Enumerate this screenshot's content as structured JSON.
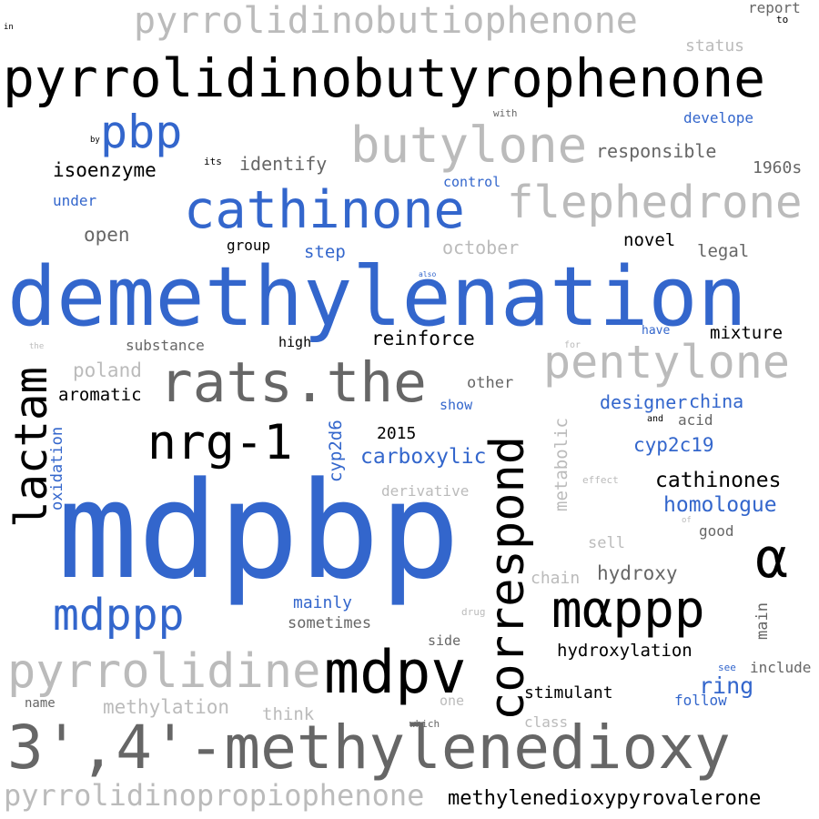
{
  "colors": {
    "blue": "#3366cc",
    "black": "#000000",
    "dark_gray": "#666666",
    "light_gray": "#bbbbbb"
  },
  "words": [
    {
      "text": "pyrrolidinobutiophenone",
      "color": "light_gray"
    },
    {
      "text": "report",
      "color": "dark_gray"
    },
    {
      "text": "to",
      "color": "black"
    },
    {
      "text": "in",
      "color": "black"
    },
    {
      "text": "status",
      "color": "light_gray"
    },
    {
      "text": "pyrrolidinobutyrophenone",
      "color": "black"
    },
    {
      "text": "with",
      "color": "dark_gray"
    },
    {
      "text": "pbp",
      "color": "blue"
    },
    {
      "text": "develope",
      "color": "blue"
    },
    {
      "text": "butylone",
      "color": "light_gray"
    },
    {
      "text": "by",
      "color": "black"
    },
    {
      "text": "responsible",
      "color": "dark_gray"
    },
    {
      "text": "its",
      "color": "black"
    },
    {
      "text": "identify",
      "color": "dark_gray"
    },
    {
      "text": "1960s",
      "color": "dark_gray"
    },
    {
      "text": "isoenzyme",
      "color": "black"
    },
    {
      "text": "control",
      "color": "blue"
    },
    {
      "text": "flephedrone",
      "color": "light_gray"
    },
    {
      "text": "under",
      "color": "blue"
    },
    {
      "text": "cathinone",
      "color": "blue"
    },
    {
      "text": "open",
      "color": "dark_gray"
    },
    {
      "text": "group",
      "color": "black"
    },
    {
      "text": "october",
      "color": "light_gray"
    },
    {
      "text": "novel",
      "color": "black"
    },
    {
      "text": "step",
      "color": "blue"
    },
    {
      "text": "legal",
      "color": "dark_gray"
    },
    {
      "text": "demethylenation",
      "color": "blue"
    },
    {
      "text": "also",
      "color": "blue"
    },
    {
      "text": "have",
      "color": "blue"
    },
    {
      "text": "mixture",
      "color": "black"
    },
    {
      "text": "the",
      "color": "light_gray"
    },
    {
      "text": "substance",
      "color": "dark_gray"
    },
    {
      "text": "high",
      "color": "black"
    },
    {
      "text": "reinforce",
      "color": "black"
    },
    {
      "text": "for",
      "color": "light_gray"
    },
    {
      "text": "pentylone",
      "color": "light_gray"
    },
    {
      "text": "poland",
      "color": "light_gray"
    },
    {
      "text": "rats.the",
      "color": "dark_gray"
    },
    {
      "text": "other",
      "color": "dark_gray"
    },
    {
      "text": "aromatic",
      "color": "black"
    },
    {
      "text": "lactam",
      "color": "black"
    },
    {
      "text": "show",
      "color": "blue"
    },
    {
      "text": "designer",
      "color": "blue"
    },
    {
      "text": "china",
      "color": "blue"
    },
    {
      "text": "oxidation",
      "color": "blue"
    },
    {
      "text": "nrg-1",
      "color": "black"
    },
    {
      "text": "correspond",
      "color": "black"
    },
    {
      "text": "metabolic",
      "color": "light_gray"
    },
    {
      "text": "and",
      "color": "black"
    },
    {
      "text": "acid",
      "color": "dark_gray"
    },
    {
      "text": "2015",
      "color": "black"
    },
    {
      "text": "cyp2c19",
      "color": "blue"
    },
    {
      "text": "carboxylic",
      "color": "blue"
    },
    {
      "text": "cyp2d6",
      "color": "blue"
    },
    {
      "text": "effect",
      "color": "light_gray"
    },
    {
      "text": "cathinones",
      "color": "black"
    },
    {
      "text": "derivative",
      "color": "light_gray"
    },
    {
      "text": "homologue",
      "color": "blue"
    },
    {
      "text": "mdpbp",
      "color": "blue"
    },
    {
      "text": "of",
      "color": "light_gray"
    },
    {
      "text": "good",
      "color": "dark_gray"
    },
    {
      "text": "sell",
      "color": "light_gray"
    },
    {
      "text": "α",
      "color": "black"
    },
    {
      "text": "chain",
      "color": "light_gray"
    },
    {
      "text": "hydroxy",
      "color": "dark_gray"
    },
    {
      "text": "mαppp",
      "color": "black"
    },
    {
      "text": "mdppp",
      "color": "blue"
    },
    {
      "text": "mainly",
      "color": "blue"
    },
    {
      "text": "drug",
      "color": "light_gray"
    },
    {
      "text": "main",
      "color": "dark_gray"
    },
    {
      "text": "sometimes",
      "color": "dark_gray"
    },
    {
      "text": "side",
      "color": "dark_gray"
    },
    {
      "text": "hydroxylation",
      "color": "black"
    },
    {
      "text": "pyrrolidine",
      "color": "light_gray"
    },
    {
      "text": "mdpv",
      "color": "black"
    },
    {
      "text": "see",
      "color": "blue"
    },
    {
      "text": "include",
      "color": "dark_gray"
    },
    {
      "text": "ring",
      "color": "blue"
    },
    {
      "text": "methylation",
      "color": "light_gray"
    },
    {
      "text": "stimulant",
      "color": "black"
    },
    {
      "text": "name",
      "color": "dark_gray"
    },
    {
      "text": "one",
      "color": "light_gray"
    },
    {
      "text": "follow",
      "color": "blue"
    },
    {
      "text": "think",
      "color": "light_gray"
    },
    {
      "text": "which",
      "color": "dark_gray"
    },
    {
      "text": "class",
      "color": "light_gray"
    },
    {
      "text": "3',4'-methylenedioxy",
      "color": "dark_gray"
    },
    {
      "text": "pyrrolidinopropiophenone",
      "color": "light_gray"
    },
    {
      "text": "methylenedioxypyrovalerone",
      "color": "black"
    }
  ]
}
